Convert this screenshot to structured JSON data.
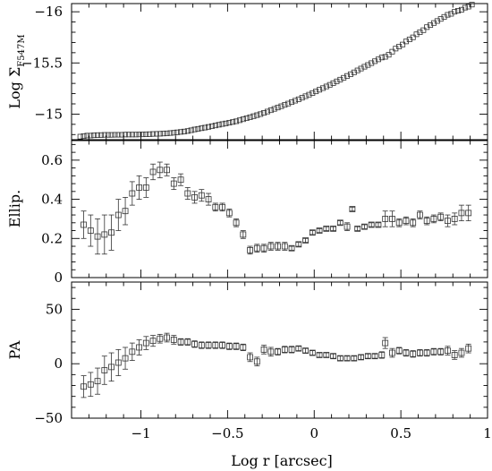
{
  "chart_data": {
    "type": "scatter",
    "x_title": "Log r [arcsec]",
    "x_range": [
      -1.4,
      1.0
    ],
    "x_ticks": [
      -1,
      -0.5,
      0,
      0.5,
      1
    ],
    "x_tick_labels": [
      "−1",
      "−0.5",
      "0",
      "0.5",
      "1"
    ],
    "panels": [
      {
        "id": "surface-brightness",
        "ylabel_main": "Log Σ",
        "ylabel_sub": "F547M",
        "ylim": [
          -16.08,
          -14.75
        ],
        "inverted": true,
        "yticks": [
          -15,
          -15.5,
          -16
        ],
        "ytick_labels": [
          "−15",
          "−15.5",
          "−16"
        ],
        "points": [
          [
            -1.35,
            -14.78
          ],
          [
            -1.33,
            -14.785
          ],
          [
            -1.31,
            -14.79
          ],
          [
            -1.29,
            -14.79
          ],
          [
            -1.27,
            -14.793
          ],
          [
            -1.25,
            -14.795
          ],
          [
            -1.23,
            -14.795
          ],
          [
            -1.21,
            -14.797
          ],
          [
            -1.19,
            -14.797
          ],
          [
            -1.17,
            -14.797
          ],
          [
            -1.15,
            -14.798
          ],
          [
            -1.13,
            -14.798
          ],
          [
            -1.11,
            -14.798
          ],
          [
            -1.09,
            -14.8
          ],
          [
            -1.07,
            -14.8
          ],
          [
            -1.05,
            -14.8
          ],
          [
            -1.03,
            -14.8
          ],
          [
            -1.01,
            -14.801
          ],
          [
            -0.99,
            -14.802
          ],
          [
            -0.97,
            -14.803
          ],
          [
            -0.95,
            -14.804
          ],
          [
            -0.93,
            -14.806
          ],
          [
            -0.91,
            -14.807
          ],
          [
            -0.89,
            -14.808
          ],
          [
            -0.87,
            -14.81
          ],
          [
            -0.85,
            -14.812
          ],
          [
            -0.83,
            -14.815
          ],
          [
            -0.81,
            -14.818
          ],
          [
            -0.79,
            -14.822
          ],
          [
            -0.77,
            -14.826
          ],
          [
            -0.75,
            -14.83
          ],
          [
            -0.73,
            -14.835
          ],
          [
            -0.71,
            -14.842
          ],
          [
            -0.69,
            -14.85
          ],
          [
            -0.67,
            -14.856
          ],
          [
            -0.65,
            -14.862
          ],
          [
            -0.63,
            -14.868
          ],
          [
            -0.61,
            -14.875
          ],
          [
            -0.59,
            -14.882
          ],
          [
            -0.57,
            -14.889
          ],
          [
            -0.55,
            -14.896
          ],
          [
            -0.53,
            -14.903
          ],
          [
            -0.51,
            -14.909
          ],
          [
            -0.49,
            -14.916
          ],
          [
            -0.47,
            -14.923
          ],
          [
            -0.45,
            -14.93
          ],
          [
            -0.43,
            -14.94
          ],
          [
            -0.41,
            -14.95
          ],
          [
            -0.39,
            -14.96
          ],
          [
            -0.37,
            -14.97
          ],
          [
            -0.35,
            -14.98
          ],
          [
            -0.33,
            -14.99
          ],
          [
            -0.31,
            -15.0
          ],
          [
            -0.29,
            -15.012
          ],
          [
            -0.27,
            -15.025
          ],
          [
            -0.25,
            -15.038
          ],
          [
            -0.23,
            -15.051
          ],
          [
            -0.21,
            -15.064
          ],
          [
            -0.19,
            -15.077
          ],
          [
            -0.17,
            -15.09
          ],
          [
            -0.15,
            -15.103
          ],
          [
            -0.13,
            -15.117
          ],
          [
            -0.11,
            -15.131
          ],
          [
            -0.09,
            -15.145
          ],
          [
            -0.07,
            -15.16
          ],
          [
            -0.05,
            -15.175
          ],
          [
            -0.03,
            -15.19
          ],
          [
            -0.01,
            -15.206
          ],
          [
            0.01,
            -15.222
          ],
          [
            0.03,
            -15.238
          ],
          [
            0.05,
            -15.254
          ],
          [
            0.07,
            -15.27
          ],
          [
            0.09,
            -15.286
          ],
          [
            0.11,
            -15.303
          ],
          [
            0.13,
            -15.32
          ],
          [
            0.15,
            -15.337
          ],
          [
            0.17,
            -15.355
          ],
          [
            0.19,
            -15.373
          ],
          [
            0.21,
            -15.39
          ],
          [
            0.23,
            -15.408
          ],
          [
            0.25,
            -15.427
          ],
          [
            0.27,
            -15.445
          ],
          [
            0.29,
            -15.463
          ],
          [
            0.31,
            -15.48
          ],
          [
            0.33,
            -15.498
          ],
          [
            0.35,
            -15.517
          ],
          [
            0.37,
            -15.535
          ],
          [
            0.39,
            -15.553
          ],
          [
            0.41,
            -15.56
          ],
          [
            0.43,
            -15.58
          ],
          [
            0.45,
            -15.61
          ],
          [
            0.47,
            -15.64
          ],
          [
            0.49,
            -15.66
          ],
          [
            0.51,
            -15.68
          ],
          [
            0.53,
            -15.71
          ],
          [
            0.55,
            -15.73
          ],
          [
            0.57,
            -15.75
          ],
          [
            0.59,
            -15.78
          ],
          [
            0.61,
            -15.8
          ],
          [
            0.63,
            -15.82
          ],
          [
            0.65,
            -15.85
          ],
          [
            0.67,
            -15.87
          ],
          [
            0.69,
            -15.89
          ],
          [
            0.71,
            -15.91
          ],
          [
            0.73,
            -15.93
          ],
          [
            0.75,
            -15.95
          ],
          [
            0.77,
            -15.97
          ],
          [
            0.79,
            -15.98
          ],
          [
            0.81,
            -16.0
          ],
          [
            0.83,
            -16.01
          ],
          [
            0.85,
            -16.02
          ],
          [
            0.87,
            -16.04
          ],
          [
            0.89,
            -16.05
          ],
          [
            0.91,
            -16.07
          ]
        ]
      },
      {
        "id": "ellipticity",
        "ylabel": "Ellip.",
        "ylim": [
          0.0,
          0.7
        ],
        "inverted": false,
        "yticks": [
          0,
          0.2,
          0.4,
          0.6
        ],
        "ytick_labels": [
          "0",
          "0.2",
          "0.4",
          "0.6"
        ],
        "points": [
          [
            -1.33,
            0.27,
            0.07
          ],
          [
            -1.29,
            0.24,
            0.08
          ],
          [
            -1.25,
            0.21,
            0.09
          ],
          [
            -1.21,
            0.22,
            0.1
          ],
          [
            -1.17,
            0.23,
            0.09
          ],
          [
            -1.13,
            0.32,
            0.08
          ],
          [
            -1.09,
            0.34,
            0.07
          ],
          [
            -1.05,
            0.43,
            0.06
          ],
          [
            -1.01,
            0.46,
            0.06
          ],
          [
            -0.97,
            0.46,
            0.05
          ],
          [
            -0.93,
            0.54,
            0.04
          ],
          [
            -0.89,
            0.55,
            0.04
          ],
          [
            -0.85,
            0.55,
            0.03
          ],
          [
            -0.81,
            0.48,
            0.03
          ],
          [
            -0.77,
            0.5,
            0.03
          ],
          [
            -0.73,
            0.43,
            0.03
          ],
          [
            -0.69,
            0.41,
            0.03
          ],
          [
            -0.65,
            0.42,
            0.03
          ],
          [
            -0.61,
            0.4,
            0.03
          ],
          [
            -0.57,
            0.36,
            0.02
          ],
          [
            -0.53,
            0.36,
            0.02
          ],
          [
            -0.49,
            0.33,
            0.02
          ],
          [
            -0.45,
            0.28,
            0.02
          ],
          [
            -0.41,
            0.22,
            0.02
          ],
          [
            -0.37,
            0.14,
            0.02
          ],
          [
            -0.33,
            0.15,
            0.02
          ],
          [
            -0.29,
            0.15,
            0.02
          ],
          [
            -0.25,
            0.16,
            0.02
          ],
          [
            -0.21,
            0.16,
            0.02
          ],
          [
            -0.17,
            0.16,
            0.02
          ],
          [
            -0.13,
            0.15,
            0.01
          ],
          [
            -0.09,
            0.17,
            0.01
          ],
          [
            -0.05,
            0.19,
            0.01
          ],
          [
            -0.01,
            0.23,
            0.01
          ],
          [
            0.03,
            0.24,
            0.01
          ],
          [
            0.07,
            0.25,
            0.01
          ],
          [
            0.11,
            0.25,
            0.01
          ],
          [
            0.15,
            0.28,
            0.01
          ],
          [
            0.19,
            0.26,
            0.02
          ],
          [
            0.22,
            0.35,
            0.01
          ],
          [
            0.25,
            0.25,
            0.01
          ],
          [
            0.29,
            0.26,
            0.01
          ],
          [
            0.33,
            0.27,
            0.01
          ],
          [
            0.37,
            0.27,
            0.01
          ],
          [
            0.41,
            0.3,
            0.04
          ],
          [
            0.45,
            0.3,
            0.04
          ],
          [
            0.49,
            0.28,
            0.02
          ],
          [
            0.53,
            0.29,
            0.02
          ],
          [
            0.57,
            0.28,
            0.02
          ],
          [
            0.61,
            0.32,
            0.02
          ],
          [
            0.65,
            0.29,
            0.02
          ],
          [
            0.69,
            0.3,
            0.02
          ],
          [
            0.73,
            0.31,
            0.02
          ],
          [
            0.77,
            0.29,
            0.03
          ],
          [
            0.81,
            0.3,
            0.03
          ],
          [
            0.85,
            0.33,
            0.04
          ],
          [
            0.89,
            0.33,
            0.04
          ]
        ]
      },
      {
        "id": "position-angle",
        "ylabel": "PA",
        "ylim": [
          -50,
          75
        ],
        "inverted": false,
        "yticks": [
          -50,
          0,
          50
        ],
        "ytick_labels": [
          "−50",
          "0",
          "50"
        ],
        "points": [
          [
            -1.33,
            -21,
            10
          ],
          [
            -1.29,
            -19,
            11
          ],
          [
            -1.25,
            -16,
            12
          ],
          [
            -1.21,
            -6,
            13
          ],
          [
            -1.17,
            -3,
            13
          ],
          [
            -1.13,
            1,
            12
          ],
          [
            -1.09,
            5,
            10
          ],
          [
            -1.05,
            11,
            8
          ],
          [
            -1.01,
            15,
            7
          ],
          [
            -0.97,
            19,
            6
          ],
          [
            -0.93,
            21,
            5
          ],
          [
            -0.89,
            23,
            4
          ],
          [
            -0.85,
            24,
            4
          ],
          [
            -0.81,
            22,
            4
          ],
          [
            -0.77,
            20,
            3
          ],
          [
            -0.73,
            20,
            3
          ],
          [
            -0.69,
            18,
            3
          ],
          [
            -0.65,
            17,
            3
          ],
          [
            -0.61,
            17,
            3
          ],
          [
            -0.57,
            17,
            3
          ],
          [
            -0.53,
            17,
            3
          ],
          [
            -0.49,
            16,
            3
          ],
          [
            -0.45,
            16,
            3
          ],
          [
            -0.41,
            15,
            3
          ],
          [
            -0.37,
            6,
            4
          ],
          [
            -0.33,
            2,
            4
          ],
          [
            -0.29,
            13,
            4
          ],
          [
            -0.25,
            11,
            4
          ],
          [
            -0.21,
            11,
            3
          ],
          [
            -0.17,
            13,
            3
          ],
          [
            -0.13,
            13,
            3
          ],
          [
            -0.09,
            14,
            2
          ],
          [
            -0.05,
            12,
            2
          ],
          [
            -0.01,
            10,
            2
          ],
          [
            0.03,
            8,
            2
          ],
          [
            0.07,
            8,
            2
          ],
          [
            0.11,
            7,
            2
          ],
          [
            0.15,
            5,
            2
          ],
          [
            0.19,
            5,
            2
          ],
          [
            0.23,
            5,
            2
          ],
          [
            0.27,
            6,
            2
          ],
          [
            0.31,
            7,
            2
          ],
          [
            0.35,
            7,
            2
          ],
          [
            0.39,
            8,
            3
          ],
          [
            0.41,
            19,
            5
          ],
          [
            0.45,
            10,
            4
          ],
          [
            0.49,
            12,
            3
          ],
          [
            0.53,
            10,
            3
          ],
          [
            0.57,
            9,
            3
          ],
          [
            0.61,
            10,
            3
          ],
          [
            0.65,
            10,
            3
          ],
          [
            0.69,
            11,
            3
          ],
          [
            0.73,
            11,
            3
          ],
          [
            0.77,
            12,
            4
          ],
          [
            0.81,
            8,
            4
          ],
          [
            0.85,
            10,
            4
          ],
          [
            0.89,
            14,
            4
          ]
        ]
      }
    ]
  }
}
